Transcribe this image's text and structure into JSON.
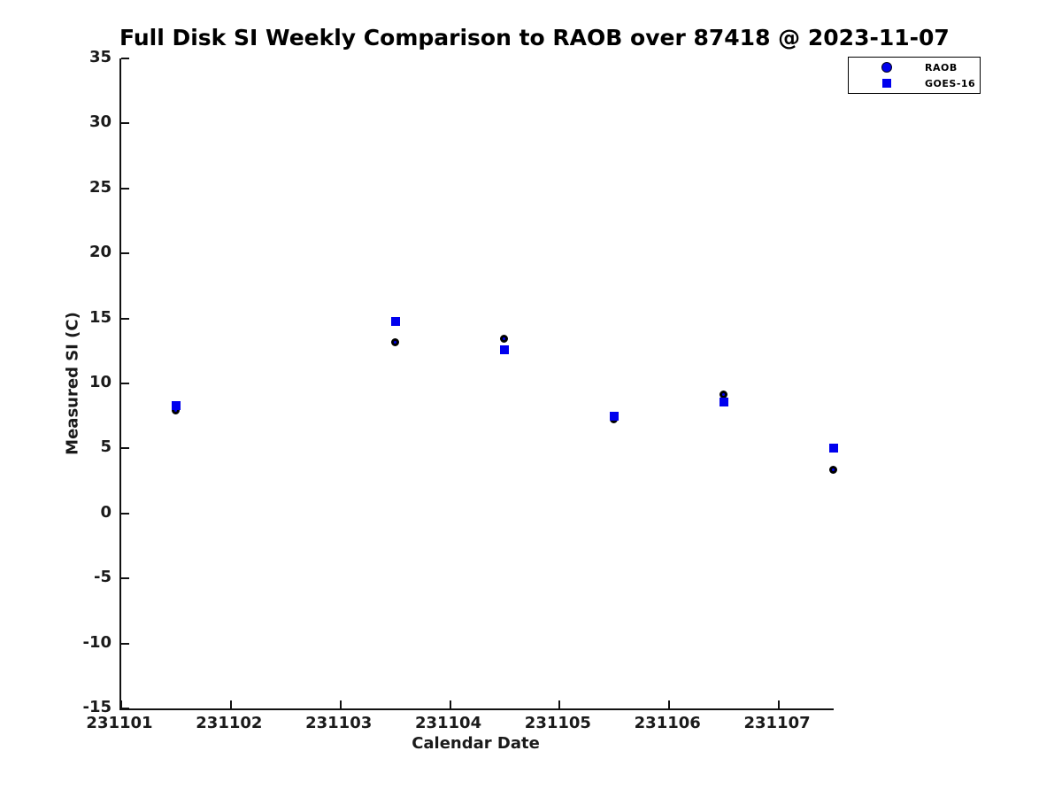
{
  "colors": {
    "marker_blue": "#0000EE",
    "marker_edge_black": "#000000",
    "axis_color": "#111111",
    "text_color": "#1a1a1a"
  },
  "chart_data": {
    "type": "scatter",
    "title": "Full Disk SI Weekly Comparison to RAOB over 87418 @ 2023-11-07",
    "xlabel": "Calendar Date",
    "ylabel": "Measured SI (C)",
    "xlim": [
      231101,
      231107.5
    ],
    "ylim": [
      -15,
      35
    ],
    "xticks": [
      231101,
      231102,
      231103,
      231104,
      231105,
      231106,
      231107
    ],
    "yticks": [
      35,
      30,
      25,
      20,
      15,
      10,
      5,
      0,
      -5,
      -10,
      -15
    ],
    "grid": false,
    "legend_position": "top-right",
    "series": [
      {
        "name": "RAOB",
        "marker": "circle",
        "marker_face_color": "#0000EE",
        "marker_edge_color": "#000000",
        "x": [
          231101.5,
          231103.5,
          231104.5,
          231105.5,
          231106.5,
          231107.5
        ],
        "y": [
          7.9,
          13.1,
          13.4,
          7.2,
          9.1,
          3.3
        ]
      },
      {
        "name": "GOES-16",
        "marker": "square",
        "marker_face_color": "#0000EE",
        "marker_edge_color": "#0000EE",
        "x": [
          231101.5,
          231103.5,
          231104.5,
          231105.5,
          231106.5,
          231107.5
        ],
        "y": [
          8.3,
          14.8,
          12.6,
          7.5,
          8.6,
          5.0
        ]
      }
    ]
  }
}
